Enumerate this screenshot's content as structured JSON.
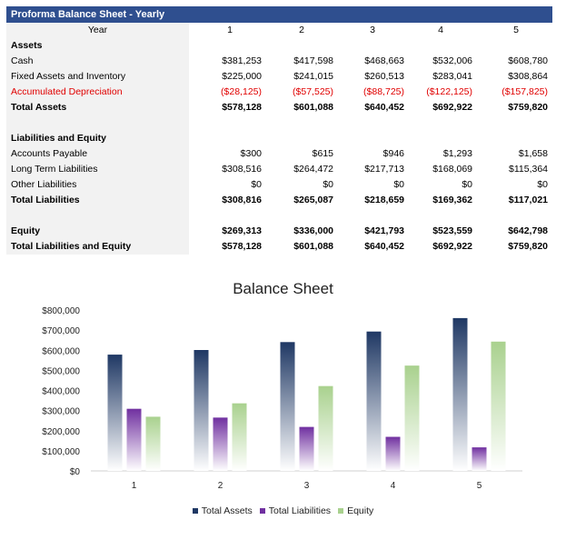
{
  "table": {
    "title": "Proforma Balance Sheet - Yearly",
    "header": {
      "label": "Year",
      "values": [
        "1",
        "2",
        "3",
        "4",
        "5"
      ]
    },
    "rows": [
      {
        "label": "Assets",
        "values": [
          "",
          "",
          "",
          "",
          ""
        ],
        "bold": true
      },
      {
        "label": "Cash",
        "values": [
          "$381,253",
          "$417,598",
          "$468,663",
          "$532,006",
          "$608,780"
        ]
      },
      {
        "label": "Fixed Assets and Inventory",
        "values": [
          "$225,000",
          "$241,015",
          "$260,513",
          "$283,041",
          "$308,864"
        ]
      },
      {
        "label": "Accumulated Depreciation",
        "values": [
          "($28,125)",
          "($57,525)",
          "($88,725)",
          "($122,125)",
          "($157,825)"
        ],
        "negative": true
      },
      {
        "label": "Total Assets",
        "values": [
          "$578,128",
          "$601,088",
          "$640,452",
          "$692,922",
          "$759,820"
        ],
        "bold": true
      },
      {
        "label": "",
        "values": [
          "",
          "",
          "",
          "",
          ""
        ]
      },
      {
        "label": "Liabilities and Equity",
        "values": [
          "",
          "",
          "",
          "",
          ""
        ],
        "bold": true
      },
      {
        "label": "Accounts Payable",
        "values": [
          "$300",
          "$615",
          "$946",
          "$1,293",
          "$1,658"
        ]
      },
      {
        "label": "Long Term Liabilities",
        "values": [
          "$308,516",
          "$264,472",
          "$217,713",
          "$168,069",
          "$115,364"
        ]
      },
      {
        "label": "Other Liabilities",
        "values": [
          "$0",
          "$0",
          "$0",
          "$0",
          "$0"
        ]
      },
      {
        "label": "Total Liabilities",
        "values": [
          "$308,816",
          "$265,087",
          "$218,659",
          "$169,362",
          "$117,021"
        ],
        "bold": true
      },
      {
        "label": "",
        "values": [
          "",
          "",
          "",
          "",
          ""
        ]
      },
      {
        "label": "Equity",
        "values": [
          "$269,313",
          "$336,000",
          "$421,793",
          "$523,559",
          "$642,798"
        ],
        "bold": true
      },
      {
        "label": "Total Liabilities and Equity",
        "values": [
          "$578,128",
          "$601,088",
          "$640,452",
          "$692,922",
          "$759,820"
        ],
        "bold": true
      }
    ]
  },
  "chart_data": {
    "type": "bar",
    "title": "Balance Sheet",
    "categories": [
      "1",
      "2",
      "3",
      "4",
      "5"
    ],
    "series": [
      {
        "name": "Total Assets",
        "values": [
          578128,
          601088,
          640452,
          692922,
          759820
        ],
        "color": "#1f3864"
      },
      {
        "name": "Total Liabilities",
        "values": [
          308816,
          265087,
          218659,
          169362,
          117021
        ],
        "color": "#7030a0"
      },
      {
        "name": "Equity",
        "values": [
          269313,
          336000,
          421793,
          523559,
          642798
        ],
        "color": "#a9d18e"
      }
    ],
    "yticks": [
      "$0",
      "$100,000",
      "$200,000",
      "$300,000",
      "$400,000",
      "$500,000",
      "$600,000",
      "$700,000",
      "$800,000"
    ],
    "ylim": [
      0,
      800000
    ],
    "grid": false,
    "legend_position": "bottom"
  },
  "colors": {
    "header_bar": "#2f4f8f",
    "label_bg": "#f2f2f2",
    "negative": "#e00000"
  }
}
